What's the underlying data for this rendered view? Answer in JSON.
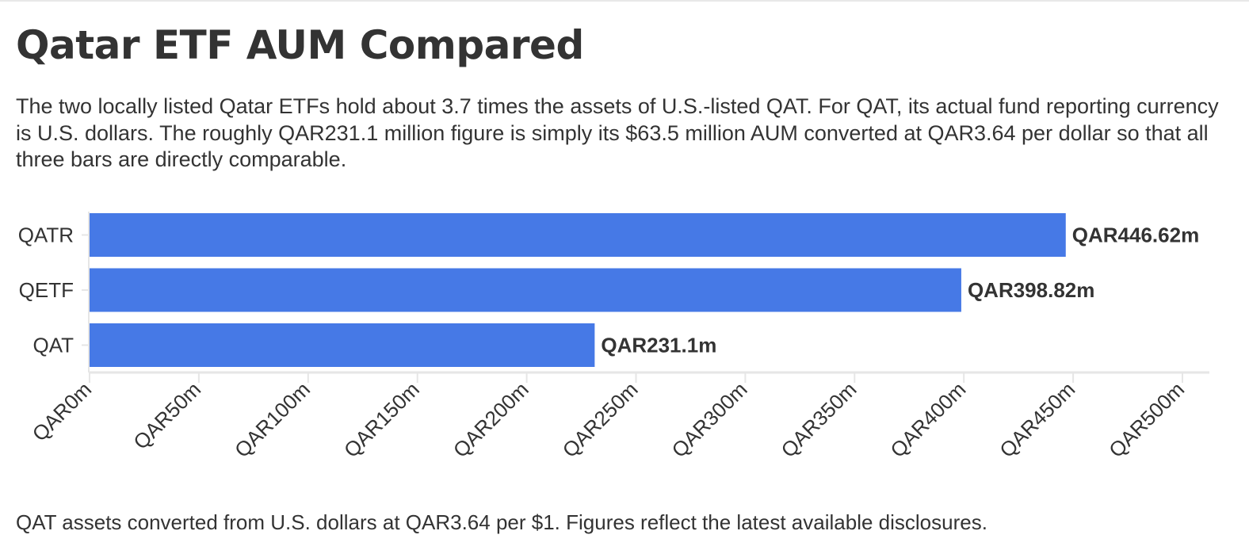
{
  "header": {
    "title": "Qatar ETF AUM Compared",
    "subtitle": "The two locally listed Qatar ETFs hold about 3.7 times the assets of U.S.-listed QAT. For QAT, its actual fund reporting currency is U.S. dollars. The roughly QAR231.1 million figure is simply its $63.5 million AUM converted at QAR3.64 per dollar so that all three bars are directly comparable."
  },
  "footer": {
    "note": "QAT assets converted from U.S. dollars at QAR3.64 per $1. Figures reflect the latest available disclosures."
  },
  "chart_data": {
    "type": "bar",
    "orientation": "horizontal",
    "categories": [
      "QATR",
      "QETF",
      "QAT"
    ],
    "values": [
      446.62,
      398.82,
      231.1
    ],
    "data_labels": [
      "QAR446.62m",
      "QAR398.82m",
      "QAR231.1m"
    ],
    "xlim": [
      0,
      500
    ],
    "x_ticks": [
      0,
      50,
      100,
      150,
      200,
      250,
      300,
      350,
      400,
      450,
      500
    ],
    "x_tick_labels": [
      "QAR0m",
      "QAR50m",
      "QAR100m",
      "QAR150m",
      "QAR200m",
      "QAR250m",
      "QAR300m",
      "QAR350m",
      "QAR400m",
      "QAR450m",
      "QAR500m"
    ],
    "bar_color": "#4679e6",
    "axis_color": "#e6e6e6",
    "grid": false,
    "legend": "none"
  }
}
